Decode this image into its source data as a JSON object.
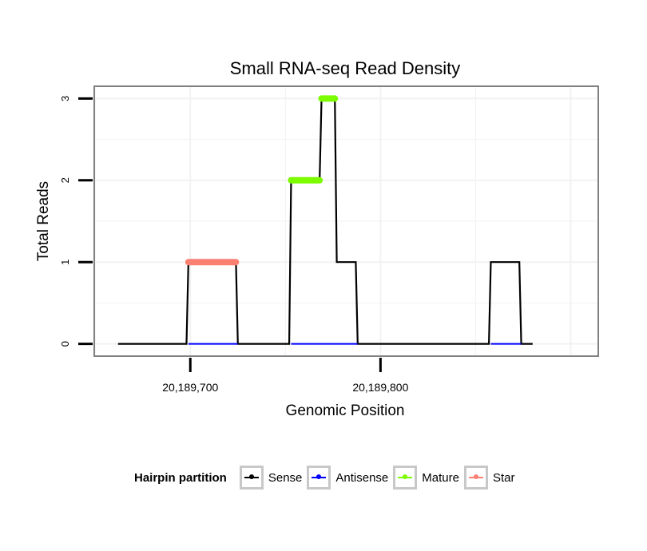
{
  "chart_data": {
    "type": "line",
    "title": "Small RNA-seq Read Density",
    "xlabel": "Genomic Position",
    "ylabel": "Total Reads",
    "xlim": [
      20189649.5,
      20189914.5
    ],
    "ylim": [
      -0.15,
      3.15
    ],
    "x_ticks": [
      20189700,
      20189800
    ],
    "x_tick_labels": [
      "20,189,700",
      "20,189,800"
    ],
    "y_ticks": [
      0,
      1,
      2,
      3
    ],
    "y_tick_labels": [
      "0",
      "1",
      "2",
      "3"
    ],
    "grid": true,
    "legend_position": "bottom",
    "colors": {
      "Sense": "#000000",
      "Antisense": "#0000ff",
      "Mature": "#7cfc00",
      "Star": "#fa8072"
    },
    "series": [
      {
        "name": "Sense",
        "x": [
          20189662,
          20189698,
          20189699,
          20189724,
          20189725,
          20189752,
          20189753,
          20189768,
          20189769,
          20189776,
          20189777,
          20189787,
          20189788,
          20189857,
          20189858,
          20189873,
          20189874,
          20189880
        ],
        "y": [
          0,
          0,
          1,
          1,
          0,
          0,
          2,
          2,
          3,
          3,
          1,
          1,
          0,
          0,
          1,
          1,
          0,
          0
        ]
      },
      {
        "name": "Antisense",
        "x": [
          20189699,
          20189725,
          20189753,
          20189788,
          20189858,
          20189874
        ],
        "y": [
          0,
          0,
          0,
          0,
          0,
          0
        ]
      },
      {
        "name": "Star",
        "x": [
          20189699,
          20189724
        ],
        "y": [
          1,
          1
        ]
      },
      {
        "name": "Mature",
        "x": [
          20189753,
          20189768
        ],
        "y": [
          2,
          2
        ]
      },
      {
        "name": "Mature",
        "x": [
          20189769,
          20189776
        ],
        "y": [
          3,
          3
        ]
      }
    ]
  },
  "legend": {
    "title": "Hairpin partition",
    "items": [
      {
        "label": "Sense",
        "color": "#000000"
      },
      {
        "label": "Antisense",
        "color": "#0000ff"
      },
      {
        "label": "Mature",
        "color": "#7cfc00"
      },
      {
        "label": "Star",
        "color": "#fa8072"
      }
    ]
  }
}
